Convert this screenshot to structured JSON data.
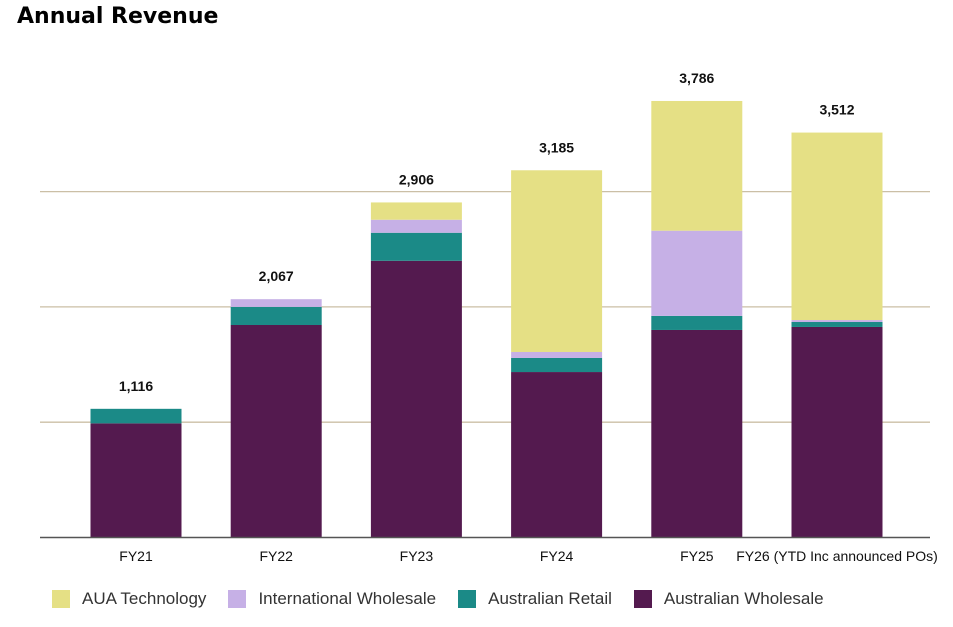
{
  "chart_data": {
    "type": "bar",
    "stacked": true,
    "title": "Annual Revenue",
    "xlabel": "",
    "ylabel": "",
    "categories": [
      "FY21",
      "FY22",
      "FY23",
      "FY24",
      "FY25",
      "FY26 (YTD Inc announced POs)"
    ],
    "ylim": [
      0,
      4000
    ],
    "gridlines": [
      1000,
      2000,
      3000
    ],
    "grid": true,
    "y_tick_labels_shown": false,
    "legend_position": "bottom",
    "totals": [
      "1,116",
      "2,067",
      "2,906",
      "3,185",
      "3,786",
      "3,512"
    ],
    "series": [
      {
        "name": "Australian Wholesale",
        "color": "#541a4f",
        "values": [
          990,
          1843,
          2400,
          1435,
          1800,
          1826
        ]
      },
      {
        "name": "Australian Retail",
        "color": "#1b8a87",
        "values": [
          126,
          157,
          243,
          122,
          122,
          43
        ]
      },
      {
        "name": "International Wholesale",
        "color": "#c6b0e6",
        "values": [
          0,
          67,
          113,
          52,
          739,
          17
        ]
      },
      {
        "name": "AUA Technology",
        "color": "#e5e085",
        "values": [
          0,
          0,
          150,
          1576,
          1125,
          1626
        ]
      }
    ],
    "legend_order": [
      "AUA Technology",
      "International Wholesale",
      "Australian Retail",
      "Australian Wholesale"
    ]
  }
}
